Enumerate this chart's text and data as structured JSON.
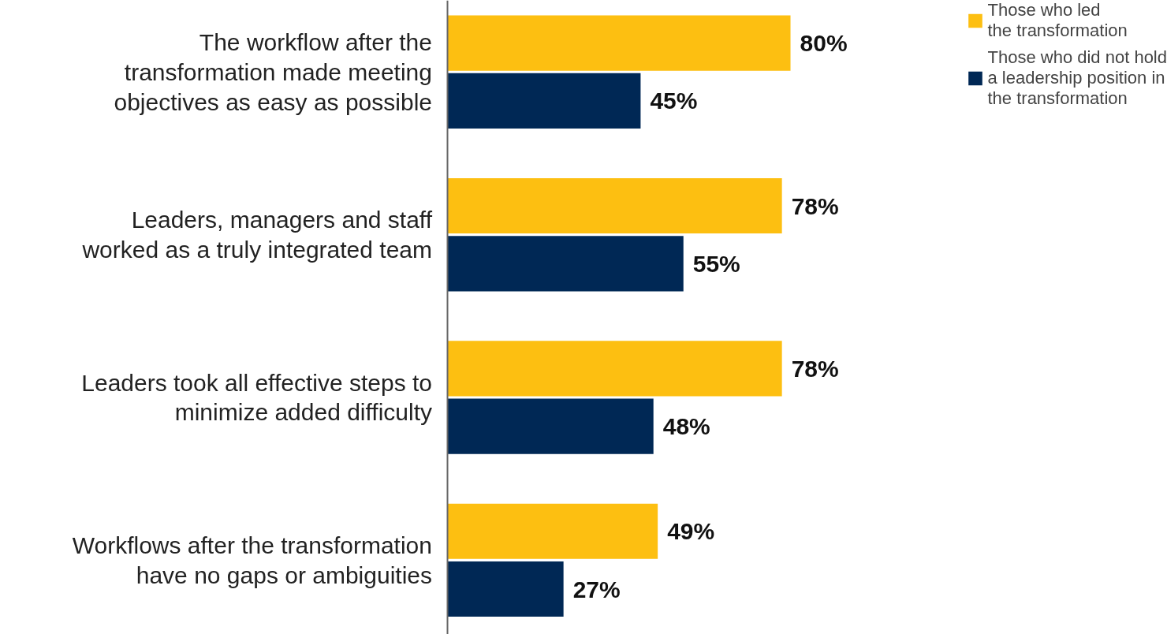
{
  "chart_data": {
    "type": "bar",
    "orientation": "horizontal",
    "data_labels": true,
    "legend": "top right",
    "grid": false,
    "categories": [
      "The workflow after the\ntransformation made meeting\nobjectives as easy as possible",
      "Leaders, managers and staff\nworked as a truly integrated team",
      "Leaders took all effective steps to\nminimize added difficulty",
      "Workflows after the transformation\nhave no gaps or ambiguities"
    ],
    "series": [
      {
        "name": "Those who led\nthe transformation",
        "color": "#fdbf11",
        "values": [
          80,
          78,
          78,
          49
        ],
        "value_labels": [
          "80%",
          "78%",
          "78%",
          "49%"
        ]
      },
      {
        "name": "Those who did not hold\na leadership position in\nthe transformation",
        "color": "#002855",
        "values": [
          45,
          55,
          48,
          27
        ],
        "value_labels": [
          "45%",
          "55%",
          "48%",
          "27%"
        ]
      }
    ]
  }
}
